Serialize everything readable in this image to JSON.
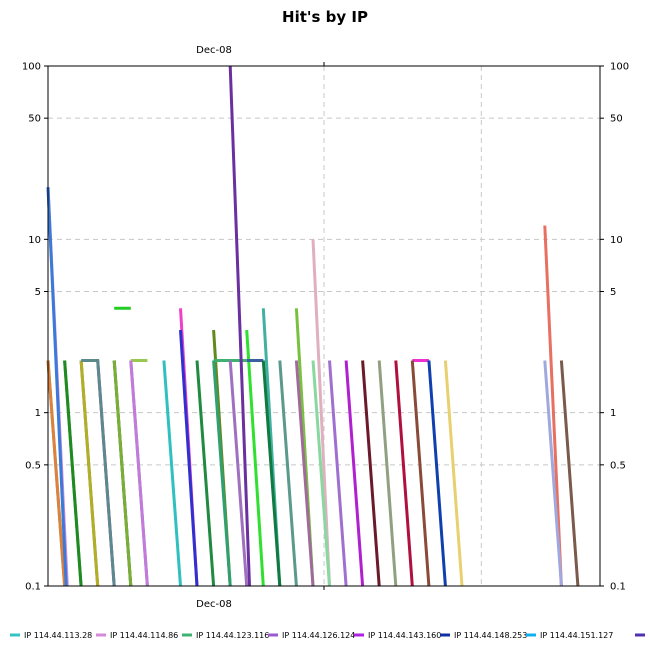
{
  "chart_data": {
    "type": "line",
    "title": "Hit's by IP",
    "xlabel": "",
    "ylabel": "",
    "y_scale": "log",
    "ylim": [
      0.1,
      100
    ],
    "y_ticks": [
      0.1,
      0.5,
      1,
      5,
      10,
      50,
      100
    ],
    "y_tick_labels": [
      "0.1",
      "0.5",
      "1",
      "5",
      "10",
      "50",
      "100"
    ],
    "x_tick_label": "Dec-08",
    "xlim": [
      0,
      100
    ],
    "x_tick_position": 50,
    "grid": true,
    "legend_position": "bottom",
    "series": [
      {
        "name": "IP 114.44.113.28",
        "color": "#35c4c4",
        "x": [
          0,
          3
        ],
        "y": [
          2,
          0.1
        ]
      },
      {
        "name": "IP 114.44.114.86",
        "color": "#d58ad8",
        "x": [
          0,
          3.5
        ],
        "y": [
          20,
          0.1
        ]
      },
      {
        "name": "IP 114.44.123.116",
        "color": "#3cb371",
        "x": [
          3,
          6
        ],
        "y": [
          2,
          0.1
        ]
      },
      {
        "name": "IP 114.44.126.124",
        "color": "#9a5ad0",
        "x": [
          6,
          9
        ],
        "y": [
          2,
          0.1
        ]
      },
      {
        "name": "IP 114.44.143.160",
        "color": "#b020e0",
        "x": [
          9,
          12
        ],
        "y": [
          2,
          0.1
        ]
      },
      {
        "name": "IP 114.44.148.253",
        "color": "#1030a0",
        "x": [
          12,
          15
        ],
        "y": [
          2,
          0.1
        ]
      },
      {
        "name": "IP 114.44.151.127",
        "color": "#10b0ee",
        "x": [
          15,
          18
        ],
        "y": [
          2,
          0.1
        ]
      },
      {
        "color": "#e0803a",
        "x": [
          0,
          3
        ],
        "y": [
          2,
          0.1
        ]
      },
      {
        "color": "#3a7ad8",
        "x": [
          0,
          3.3
        ],
        "y": [
          20,
          0.1
        ]
      },
      {
        "color": "#208a20",
        "x": [
          3,
          6
        ],
        "y": [
          2,
          0.1
        ]
      },
      {
        "color": "#b0b020",
        "x": [
          6,
          9
        ],
        "y": [
          2,
          0.1
        ]
      },
      {
        "color": "#5a8a8a",
        "x": [
          6,
          9,
          9,
          12
        ],
        "y": [
          2,
          2,
          2,
          0.1
        ]
      },
      {
        "color": "#7ab030",
        "x": [
          12,
          15
        ],
        "y": [
          2,
          0.1
        ]
      },
      {
        "color": "#98c850",
        "x": [
          15,
          18
        ],
        "y": [
          2,
          2
        ]
      },
      {
        "color": "#c878d8",
        "x": [
          15,
          18
        ],
        "y": [
          2,
          0.1
        ]
      },
      {
        "color": "#22cc22",
        "x": [
          12,
          15
        ],
        "y": [
          4,
          4
        ]
      },
      {
        "color": "#30c0c0",
        "x": [
          21,
          24
        ],
        "y": [
          2,
          0.1
        ]
      },
      {
        "color": "#ee40c8",
        "x": [
          24,
          27
        ],
        "y": [
          4,
          0.1
        ]
      },
      {
        "color": "#3030d0",
        "x": [
          24,
          27
        ],
        "y": [
          3,
          0.1
        ]
      },
      {
        "color": "#208a40",
        "x": [
          27,
          30
        ],
        "y": [
          2,
          0.1
        ]
      },
      {
        "color": "#608a20",
        "x": [
          30,
          33
        ],
        "y": [
          3,
          0.1
        ]
      },
      {
        "color": "#40b070",
        "x": [
          30,
          36
        ],
        "y": [
          2,
          2
        ]
      },
      {
        "color": "#30a070",
        "x": [
          30,
          33
        ],
        "y": [
          2,
          0.1
        ]
      },
      {
        "color": "#6a30a0",
        "x": [
          33,
          36.5
        ],
        "y": [
          100,
          0.1
        ]
      },
      {
        "color": "#a070c0",
        "x": [
          33,
          36
        ],
        "y": [
          2,
          0.1
        ]
      },
      {
        "color": "#30e030",
        "x": [
          36,
          39
        ],
        "y": [
          3,
          0.1
        ]
      },
      {
        "color": "#3a60a0",
        "x": [
          36,
          39
        ],
        "y": [
          2,
          2
        ]
      },
      {
        "color": "#40b0a0",
        "x": [
          39,
          42
        ],
        "y": [
          4,
          0.1
        ]
      },
      {
        "color": "#107a40",
        "x": [
          39,
          42
        ],
        "y": [
          2,
          0.1
        ]
      },
      {
        "color": "#5a9a8a",
        "x": [
          42,
          45
        ],
        "y": [
          2,
          0.1
        ]
      },
      {
        "color": "#7ac040",
        "x": [
          45,
          48
        ],
        "y": [
          4,
          0.1
        ]
      },
      {
        "color": "#a06a9a",
        "x": [
          45,
          48
        ],
        "y": [
          2,
          0.1
        ]
      },
      {
        "color": "#e0b0c0",
        "x": [
          48,
          51
        ],
        "y": [
          10,
          0.1
        ]
      },
      {
        "color": "#88d8a0",
        "x": [
          48,
          51
        ],
        "y": [
          2,
          0.1
        ]
      },
      {
        "color": "#a070d0",
        "x": [
          51,
          54
        ],
        "y": [
          2,
          0.1
        ]
      },
      {
        "color": "#b020d0",
        "x": [
          54,
          57
        ],
        "y": [
          2,
          0.1
        ]
      },
      {
        "color": "#6a1a2a",
        "x": [
          57,
          60
        ],
        "y": [
          2,
          0.1
        ]
      },
      {
        "color": "#90a080",
        "x": [
          60,
          63
        ],
        "y": [
          2,
          0.1
        ]
      },
      {
        "color": "#b01040",
        "x": [
          63,
          66
        ],
        "y": [
          2,
          0.1
        ]
      },
      {
        "color": "#ee30d0",
        "x": [
          66,
          69
        ],
        "y": [
          2,
          2
        ]
      },
      {
        "color": "#8a4a3a",
        "x": [
          66,
          69
        ],
        "y": [
          2,
          0.1
        ]
      },
      {
        "color": "#1040b0",
        "x": [
          69,
          72
        ],
        "y": [
          2,
          0.1
        ]
      },
      {
        "color": "#e8d070",
        "x": [
          72,
          75
        ],
        "y": [
          2,
          0.1
        ]
      },
      {
        "color": "#e87060",
        "x": [
          90,
          93
        ],
        "y": [
          12,
          0.1
        ]
      },
      {
        "color": "#a0a8e0",
        "x": [
          90,
          93
        ],
        "y": [
          2,
          0.1
        ]
      },
      {
        "color": "#7a5a4a",
        "x": [
          93,
          96
        ],
        "y": [
          2,
          0.1
        ]
      }
    ]
  }
}
